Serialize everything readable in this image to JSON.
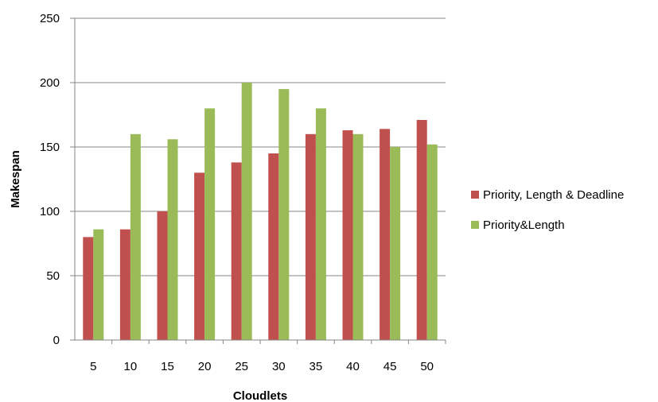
{
  "chart_data": {
    "type": "bar",
    "title": "",
    "xlabel": "Cloudlets",
    "ylabel": "Makespan",
    "categories": [
      "5",
      "10",
      "15",
      "20",
      "25",
      "30",
      "35",
      "40",
      "45",
      "50"
    ],
    "ylim": [
      0,
      250
    ],
    "yticks": [
      0,
      50,
      100,
      150,
      200,
      250
    ],
    "grid": true,
    "legend_position": "right",
    "series": [
      {
        "name": "Priority, Length & Deadline",
        "color": "#C0504D",
        "values": [
          80,
          86,
          100,
          130,
          138,
          145,
          160,
          163,
          164,
          171
        ]
      },
      {
        "name": "Priority&Length",
        "color": "#9BBB59",
        "values": [
          86,
          160,
          156,
          180,
          200,
          195,
          180,
          160,
          150,
          152
        ]
      }
    ]
  }
}
